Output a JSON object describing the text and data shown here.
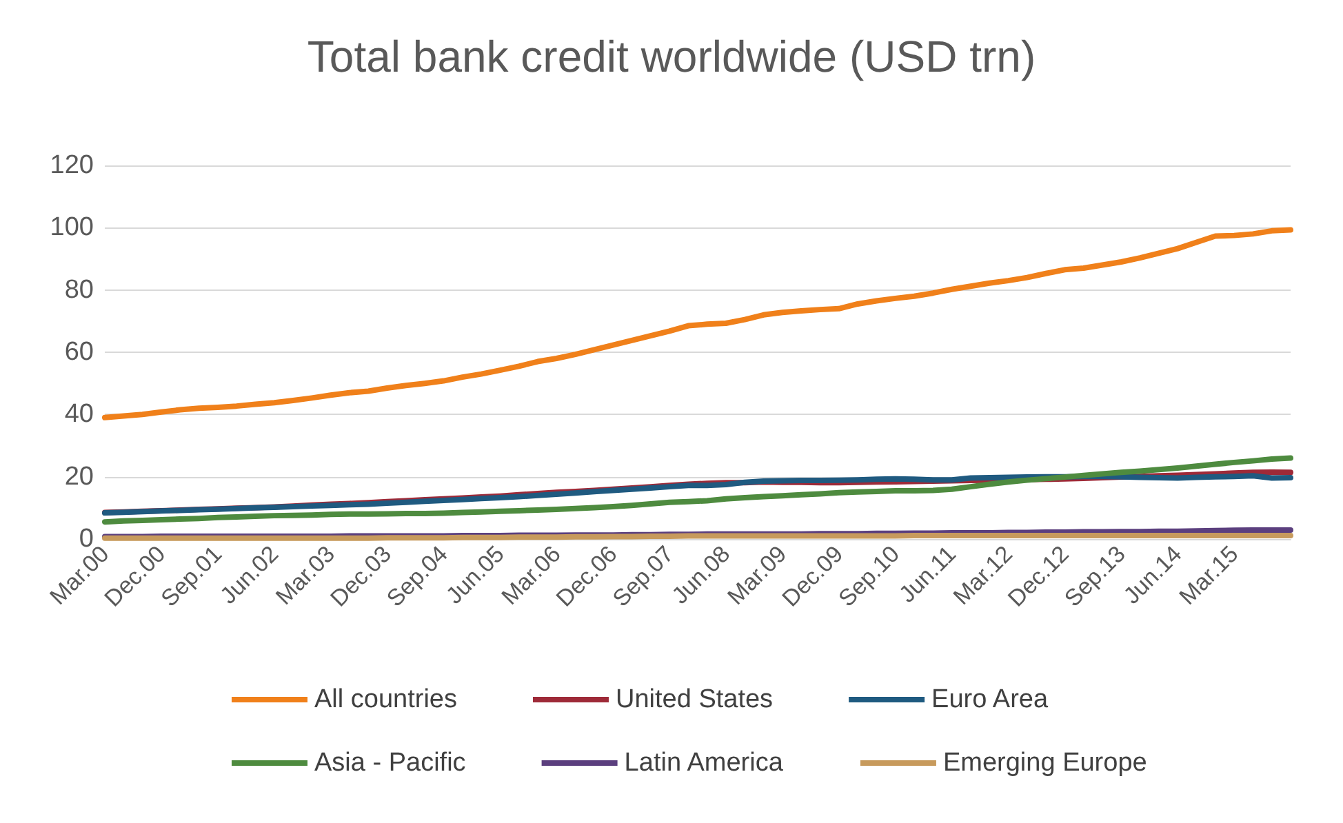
{
  "chart_data": {
    "type": "line",
    "title": "Total bank credit worldwide (USD trn)",
    "categories": [
      "Mar.00",
      null,
      null,
      "Dec.00",
      null,
      null,
      "Sep.01",
      null,
      null,
      "Jun.02",
      null,
      null,
      "Mar.03",
      null,
      null,
      "Dec.03",
      null,
      null,
      "Sep.04",
      null,
      null,
      "Jun.05",
      null,
      null,
      "Mar.06",
      null,
      null,
      "Dec.06",
      null,
      null,
      "Sep.07",
      null,
      null,
      "Jun.08",
      null,
      null,
      "Mar.09",
      null,
      null,
      "Dec.09",
      null,
      null,
      "Sep.10",
      null,
      null,
      "Jun.11",
      null,
      null,
      "Mar.12",
      null,
      null,
      "Dec.12",
      null,
      null,
      "Sep.13",
      null,
      null,
      "Jun.14",
      null,
      null,
      "Mar.15",
      null,
      null,
      null
    ],
    "ylim": [
      0,
      120
    ],
    "yticks": [
      0,
      20,
      40,
      60,
      80,
      100,
      120
    ],
    "grid": "y",
    "legend": "bottom",
    "series": [
      {
        "name": "All countries",
        "color": "#f0801a",
        "values": [
          39,
          39.5,
          40,
          40.8,
          41.5,
          42,
          42.3,
          42.7,
          43.3,
          43.8,
          44.5,
          45.3,
          46.2,
          47,
          47.5,
          48.5,
          49.3,
          50,
          50.8,
          52,
          53,
          54.2,
          55.5,
          57,
          58,
          59.3,
          60.8,
          62.3,
          63.8,
          65.3,
          66.8,
          68.5,
          69,
          69.3,
          70.5,
          72,
          72.8,
          73.3,
          73.7,
          74,
          75.5,
          76.5,
          77.3,
          78,
          79,
          80.2,
          81.2,
          82.2,
          83,
          84,
          85.3,
          86.5,
          87,
          88,
          89,
          90.3,
          91.8,
          93.3,
          95.3,
          97.3,
          97.5,
          98,
          99,
          99.3
        ]
      },
      {
        "name": "United States",
        "color": "#9e2a38",
        "values": [
          8.5,
          8.7,
          8.9,
          9.1,
          9.3,
          9.5,
          9.7,
          9.9,
          10.1,
          10.3,
          10.6,
          10.9,
          11.2,
          11.4,
          11.7,
          12,
          12.3,
          12.6,
          12.9,
          13.2,
          13.5,
          13.8,
          14.2,
          14.6,
          15,
          15.3,
          15.6,
          16,
          16.4,
          16.8,
          17.2,
          17.6,
          17.9,
          18.1,
          18.1,
          18.3,
          18.2,
          18.2,
          18.1,
          18.1,
          18.2,
          18.3,
          18.4,
          18.5,
          18.6,
          18.7,
          18.8,
          18.9,
          19,
          19.1,
          19.2,
          19.3,
          19.5,
          19.7,
          19.9,
          20.1,
          20.3,
          20.5,
          20.7,
          20.9,
          21.2,
          21.4,
          21.5,
          21.4
        ]
      },
      {
        "name": "Euro Area",
        "color": "#1f5a80",
        "values": [
          8.4,
          8.6,
          8.8,
          9,
          9.2,
          9.4,
          9.6,
          9.8,
          10,
          10.2,
          10.4,
          10.6,
          10.8,
          11,
          11.2,
          11.5,
          11.8,
          12.1,
          12.4,
          12.7,
          13,
          13.3,
          13.6,
          14,
          14.4,
          14.8,
          15.2,
          15.6,
          16,
          16.4,
          16.8,
          17.2,
          17.2,
          17.5,
          18.2,
          18.6,
          18.7,
          18.8,
          18.8,
          18.9,
          19,
          19.2,
          19.3,
          19.2,
          19,
          19,
          19.6,
          19.7,
          19.8,
          19.9,
          20,
          20,
          20.1,
          20.1,
          20,
          19.8,
          19.7,
          19.6,
          19.8,
          20,
          20.1,
          20.3,
          19.6,
          19.7
        ]
      },
      {
        "name": "Asia - Pacific",
        "color": "#4e8b3f",
        "values": [
          5.5,
          5.8,
          6,
          6.2,
          6.4,
          6.6,
          6.9,
          7.1,
          7.3,
          7.5,
          7.6,
          7.7,
          7.9,
          8,
          8,
          8.1,
          8.2,
          8.2,
          8.3,
          8.5,
          8.7,
          8.9,
          9.1,
          9.3,
          9.5,
          9.8,
          10.1,
          10.4,
          10.8,
          11.3,
          11.8,
          12,
          12.3,
          12.9,
          13.3,
          13.6,
          13.9,
          14.2,
          14.5,
          14.9,
          15.1,
          15.3,
          15.5,
          15.5,
          15.6,
          16,
          16.8,
          17.6,
          18.3,
          18.9,
          19.4,
          19.9,
          20.4,
          20.9,
          21.4,
          21.8,
          22.3,
          22.8,
          23.4,
          24,
          24.6,
          25.1,
          25.7,
          26
        ]
      },
      {
        "name": "Latin America",
        "color": "#5b3f7e",
        "values": [
          0.8,
          0.8,
          0.8,
          0.9,
          0.9,
          0.9,
          0.9,
          0.9,
          0.9,
          0.9,
          0.9,
          0.9,
          0.9,
          1,
          1,
          1,
          1,
          1,
          1,
          1.1,
          1.1,
          1.1,
          1.2,
          1.2,
          1.2,
          1.3,
          1.3,
          1.3,
          1.4,
          1.4,
          1.5,
          1.5,
          1.6,
          1.6,
          1.6,
          1.6,
          1.6,
          1.6,
          1.7,
          1.7,
          1.7,
          1.8,
          1.8,
          1.9,
          1.9,
          2,
          2,
          2,
          2.1,
          2.1,
          2.2,
          2.2,
          2.3,
          2.3,
          2.4,
          2.4,
          2.5,
          2.5,
          2.6,
          2.7,
          2.8,
          2.9,
          2.9,
          2.9
        ]
      },
      {
        "name": "Emerging Europe",
        "color": "#c79a5c",
        "values": [
          0.3,
          0.3,
          0.3,
          0.3,
          0.3,
          0.3,
          0.3,
          0.3,
          0.3,
          0.3,
          0.3,
          0.3,
          0.3,
          0.3,
          0.3,
          0.4,
          0.4,
          0.4,
          0.4,
          0.5,
          0.5,
          0.5,
          0.6,
          0.6,
          0.6,
          0.7,
          0.7,
          0.8,
          0.8,
          0.9,
          0.9,
          1,
          1,
          1,
          1,
          1,
          1,
          1,
          1,
          1,
          1,
          1,
          1,
          1.1,
          1.1,
          1.1,
          1.1,
          1.1,
          1.1,
          1.1,
          1.1,
          1.1,
          1.1,
          1.1,
          1.1,
          1.1,
          1.1,
          1.1,
          1.1,
          1.1,
          1.1,
          1.1,
          1.1,
          1.1
        ]
      }
    ]
  }
}
